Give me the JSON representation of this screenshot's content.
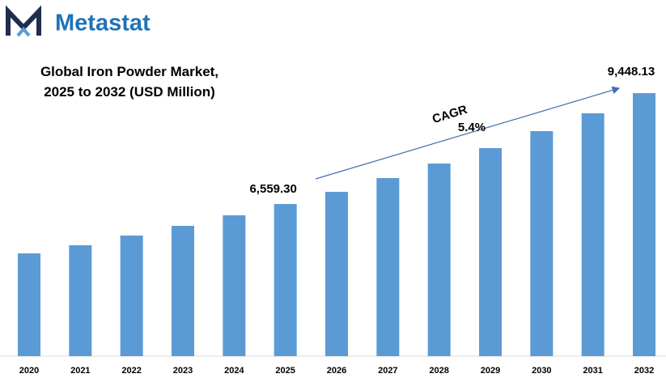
{
  "brand": "Metastat",
  "chart_data": {
    "type": "bar",
    "title": "Global Iron Powder Market, 2025 to 2032 (USD Million)",
    "categories": [
      "2020",
      "2021",
      "2022",
      "2023",
      "2024",
      "2025",
      "2026",
      "2027",
      "2028",
      "2029",
      "2030",
      "2031",
      "2032"
    ],
    "values": [
      5273,
      5484,
      5737,
      5990,
      6265,
      6559.3,
      6876,
      7235,
      7614,
      8015,
      8458,
      8922,
      9448.13
    ],
    "value_labels": [
      null,
      null,
      null,
      null,
      null,
      "6,559.30",
      null,
      null,
      null,
      null,
      null,
      null,
      "9,448.13"
    ],
    "color": "#5b9bd5",
    "ylim": [
      2595,
      9766
    ],
    "annotations": [
      "CAGR",
      "5.4%"
    ]
  }
}
